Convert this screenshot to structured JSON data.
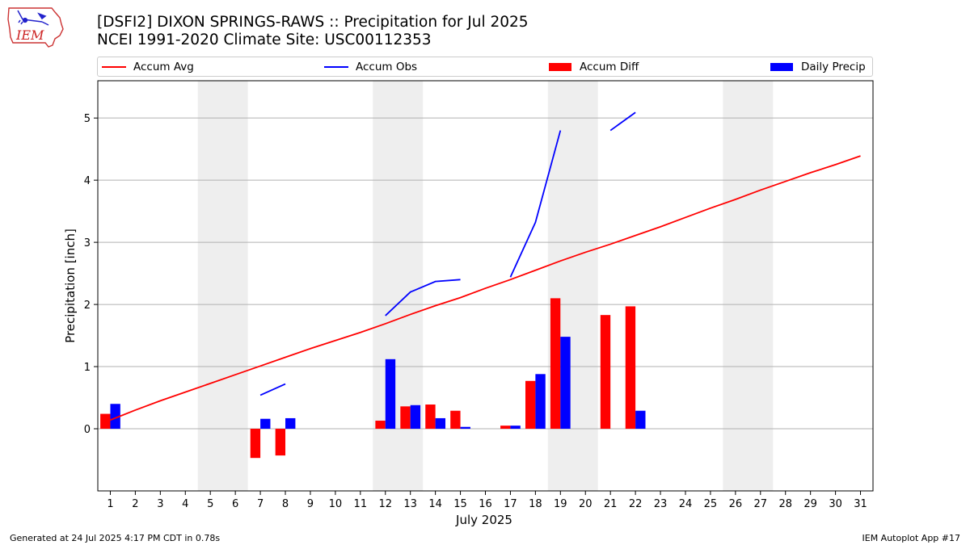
{
  "header": {
    "title_line1": "[DSFI2] DIXON SPRINGS-RAWS :: Precipitation for Jul 2025",
    "title_line2": "NCEI 1991-2020 Climate Site: USC00112353",
    "logo_text": "IEM"
  },
  "legend": {
    "accum_avg": "Accum Avg",
    "accum_obs": "Accum Obs",
    "accum_diff": "Accum Diff",
    "daily_precip": "Daily Precip",
    "placement": "top, spanning full width"
  },
  "footer": {
    "generated": "Generated at 24 Jul 2025 4:17 PM CDT in 0.78s",
    "app": "IEM Autoplot App #17"
  },
  "colors": {
    "avg": "#ff0000",
    "obs": "#0000ff",
    "diff": "#ff0000",
    "daily": "#0000ff",
    "weekend_shade": "#eeeeee",
    "grid": "#b0b0b0"
  },
  "chart_data": {
    "type": "bar",
    "xlabel": "July 2025",
    "ylabel": "Precipitation [inch]",
    "xlim": [
      0.5,
      31.5
    ],
    "ylim": [
      -1.0,
      5.6
    ],
    "yticks": [
      0,
      1,
      2,
      3,
      4,
      5
    ],
    "x": [
      1,
      2,
      3,
      4,
      5,
      6,
      7,
      8,
      9,
      10,
      11,
      12,
      13,
      14,
      15,
      16,
      17,
      18,
      19,
      20,
      21,
      22,
      23,
      24,
      25,
      26,
      27,
      28,
      29,
      30,
      31
    ],
    "grid": "horizontal",
    "shaded_days": [
      [
        5,
        6
      ],
      [
        12,
        13
      ],
      [
        19,
        20
      ],
      [
        26,
        27
      ]
    ],
    "series": [
      {
        "name": "Accum Avg",
        "kind": "line",
        "values": [
          0.14,
          0.3,
          0.45,
          0.59,
          0.73,
          0.87,
          1.01,
          1.15,
          1.29,
          1.42,
          1.55,
          1.69,
          1.84,
          1.98,
          2.11,
          2.26,
          2.4,
          2.55,
          2.7,
          2.84,
          2.97,
          3.11,
          3.25,
          3.4,
          3.55,
          3.69,
          3.84,
          3.98,
          4.12,
          4.25,
          4.39
        ]
      },
      {
        "name": "Accum Obs",
        "kind": "line",
        "segments": [
          [
            [
              7,
              0.54
            ],
            [
              8,
              0.72
            ]
          ],
          [
            [
              12,
              1.82
            ],
            [
              13,
              2.2
            ],
            [
              14,
              2.37
            ],
            [
              15,
              2.4
            ]
          ],
          [
            [
              17,
              2.44
            ],
            [
              18,
              3.32
            ],
            [
              19,
              4.8
            ]
          ],
          [
            [
              21,
              4.8
            ],
            [
              22,
              5.09
            ]
          ]
        ]
      },
      {
        "name": "Accum Diff",
        "kind": "bar",
        "values": [
          0.24,
          null,
          null,
          null,
          null,
          null,
          -0.47,
          -0.43,
          null,
          null,
          null,
          0.13,
          0.36,
          0.39,
          0.29,
          null,
          0.05,
          0.77,
          2.1,
          null,
          1.83,
          1.97,
          null,
          null,
          null,
          null,
          null,
          null,
          null,
          null,
          null
        ]
      },
      {
        "name": "Daily Precip",
        "kind": "bar",
        "values": [
          0.4,
          null,
          null,
          null,
          null,
          null,
          0.16,
          0.17,
          null,
          null,
          null,
          1.12,
          0.38,
          0.17,
          0.03,
          null,
          0.05,
          0.88,
          1.48,
          null,
          null,
          0.29,
          null,
          null,
          null,
          null,
          null,
          null,
          null,
          null,
          null
        ]
      }
    ]
  }
}
